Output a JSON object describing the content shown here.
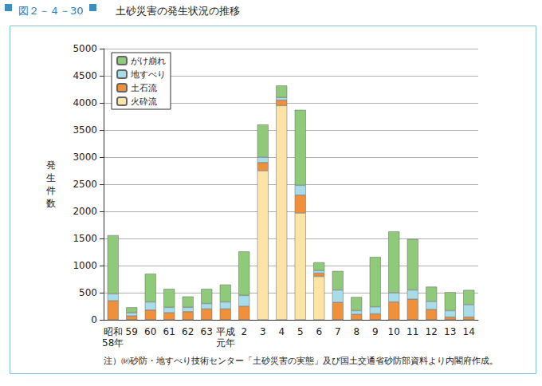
{
  "chart_data": {
    "type": "bar",
    "title": "図２－４－30",
    "subtitle": "土砂災害の発生状況の推移",
    "y_label": "発生件数",
    "note": "注）㈶砂防・地すべり技術センター「土砂災害の実態」及び国土交通省砂防部資料より内閣府作成。",
    "categories": [
      "昭和\n58年",
      "59",
      "60",
      "61",
      "62",
      "63",
      "平成\n元年",
      "2",
      "3",
      "4",
      "5",
      "6",
      "7",
      "8",
      "9",
      "10",
      "11",
      "12",
      "13",
      "14"
    ],
    "series": [
      {
        "name": "火砕流",
        "color": "#fce3a6",
        "values": [
          0,
          0,
          0,
          0,
          0,
          0,
          0,
          0,
          2750,
          3950,
          1970,
          800,
          0,
          0,
          0,
          0,
          0,
          0,
          0,
          0
        ]
      },
      {
        "name": "土石流",
        "color": "#f0903a",
        "values": [
          350,
          70,
          180,
          130,
          150,
          200,
          200,
          250,
          150,
          100,
          330,
          60,
          320,
          100,
          110,
          330,
          380,
          190,
          50,
          50
        ]
      },
      {
        "name": "地すべり",
        "color": "#a8dce8",
        "values": [
          130,
          60,
          150,
          100,
          80,
          100,
          130,
          200,
          100,
          50,
          180,
          50,
          230,
          70,
          130,
          170,
          170,
          150,
          120,
          230
        ]
      },
      {
        "name": "がけ崩れ",
        "color": "#8fc97a",
        "values": [
          1080,
          100,
          520,
          340,
          200,
          270,
          320,
          810,
          600,
          220,
          1390,
          150,
          350,
          250,
          920,
          1130,
          940,
          270,
          340,
          270
        ]
      }
    ],
    "stacked": true,
    "ylim": [
      0,
      5000
    ],
    "yticks": [
      0,
      500,
      1000,
      1500,
      2000,
      2500,
      3000,
      3500,
      4000,
      4500,
      5000
    ],
    "grid": true,
    "legend": "upper left"
  }
}
